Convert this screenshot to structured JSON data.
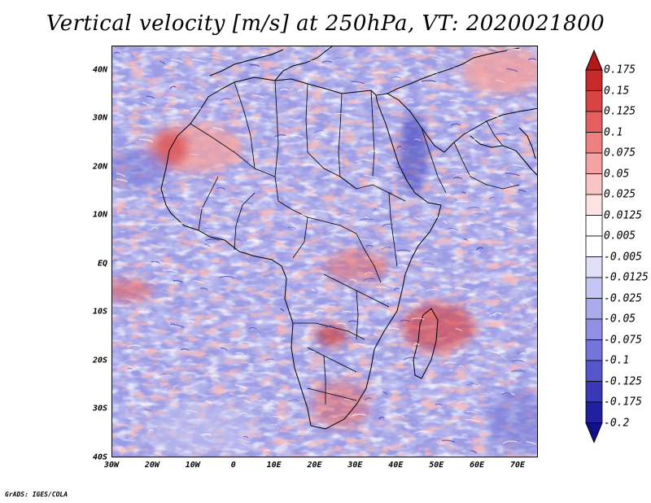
{
  "title": "Vertical velocity [m/s] at 250hPa, VT: 2020021800",
  "footer": "GrADS: IGES/COLA",
  "map": {
    "description_type": "filled contour field over Africa",
    "lon_range": [
      -30,
      75
    ],
    "lat_range": [
      -40,
      45
    ],
    "lat_labels": [
      "40N",
      "30N",
      "20N",
      "10N",
      "EQ",
      "10S",
      "20S",
      "30S",
      "40S"
    ],
    "lat_values": [
      40,
      30,
      20,
      10,
      0,
      -10,
      -20,
      -30,
      -40
    ],
    "lon_labels": [
      "30W",
      "20W",
      "10W",
      "0",
      "10E",
      "20E",
      "30E",
      "40E",
      "50E",
      "60E",
      "70E"
    ],
    "lon_values": [
      -30,
      -20,
      -10,
      0,
      10,
      20,
      30,
      40,
      50,
      60,
      70
    ]
  },
  "colorbar": {
    "labels": [
      "0.175",
      "0.15",
      "0.125",
      "0.1",
      "0.075",
      "0.05",
      "0.025",
      "0.0125",
      "0.005",
      "-0.005",
      "-0.0125",
      "-0.025",
      "-0.05",
      "-0.075",
      "-0.1",
      "-0.125",
      "-0.175",
      "-0.2"
    ],
    "colors": [
      "#b21818",
      "#c72a2a",
      "#d84444",
      "#e46060",
      "#ee8080",
      "#f5a2a2",
      "#f9c4c4",
      "#fde2e2",
      "#ffffff",
      "#ffffff",
      "#e0e0f8",
      "#c6c6f2",
      "#ababec",
      "#9090e4",
      "#7474da",
      "#5656cc",
      "#3838b8",
      "#2020a0",
      "#10108a"
    ]
  },
  "colors": {
    "blue_base": "#8c8ce0",
    "red_base": "#f08a8a",
    "white": "#ffffff"
  }
}
